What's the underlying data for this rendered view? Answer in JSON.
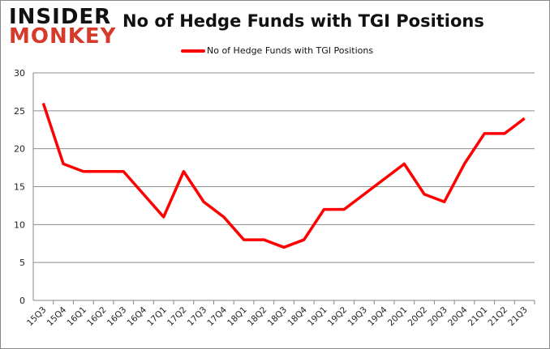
{
  "logo": {
    "line1": "INSIDER",
    "line2": "MONKEY"
  },
  "chart_data": {
    "type": "line",
    "title": "No of Hedge Funds with TGI Positions",
    "categories": [
      "15Q3",
      "15Q4",
      "16Q1",
      "16Q2",
      "16Q3",
      "16Q4",
      "17Q1",
      "17Q2",
      "17Q3",
      "17Q4",
      "18Q1",
      "18Q2",
      "18Q3",
      "18Q4",
      "19Q1",
      "19Q2",
      "19Q3",
      "19Q4",
      "20Q1",
      "20Q2",
      "20Q3",
      "20Q4",
      "21Q1",
      "21Q2",
      "21Q3"
    ],
    "series": [
      {
        "name": "No of Hedge Funds with TGI Positions",
        "color": "#ff0000",
        "values": [
          26,
          18,
          17,
          17,
          17,
          14,
          11,
          17,
          13,
          11,
          8,
          8,
          7,
          8,
          12,
          12,
          14,
          16,
          18,
          14,
          13,
          18,
          22,
          22,
          24
        ]
      }
    ],
    "ylim": [
      0,
      30
    ],
    "yticks": [
      0,
      5,
      10,
      15,
      20,
      25,
      30
    ],
    "grid": true,
    "legend": "top",
    "xlabel": "",
    "ylabel": ""
  }
}
